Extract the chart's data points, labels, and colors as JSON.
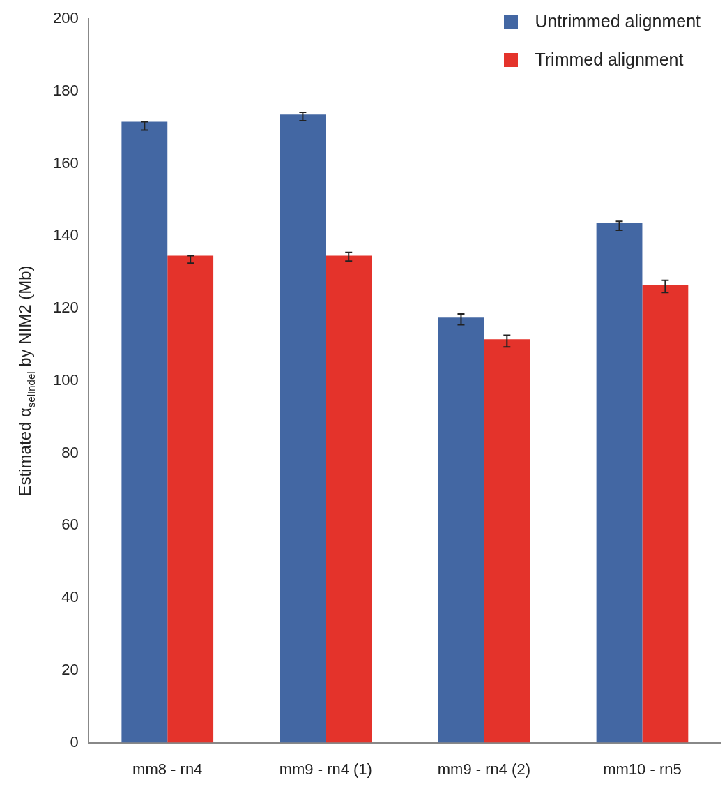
{
  "chart_data": {
    "type": "bar",
    "ylabel": "Estimated α$_{selIndel}$ by NIM2 (Mb)",
    "categories": [
      "mm8 - rn4",
      "mm9 - rn4 (1)",
      "mm9 - rn4 (2)",
      "mm10 - rn5"
    ],
    "series": [
      {
        "name": "Untrimmed alignment",
        "color": "#4367a3",
        "values": [
          171.6,
          173.6,
          117.5,
          143.7
        ],
        "errors": [
          [
            169.3,
            171.6
          ],
          [
            171.9,
            174.2
          ],
          [
            115.5,
            118.5
          ],
          [
            141.6,
            144.1
          ]
        ]
      },
      {
        "name": "Trimmed alignment",
        "color": "#e4332b",
        "values": [
          134.6,
          134.6,
          111.5,
          126.6
        ],
        "errors": [
          [
            132.5,
            134.6
          ],
          [
            133.1,
            135.5
          ],
          [
            109.4,
            112.6
          ],
          [
            124.4,
            127.8
          ]
        ]
      }
    ],
    "ylim": [
      0,
      200
    ],
    "yticks": [
      0,
      20,
      40,
      60,
      80,
      100,
      120,
      140,
      160,
      180,
      200
    ],
    "grid": false,
    "legend": "top right"
  }
}
